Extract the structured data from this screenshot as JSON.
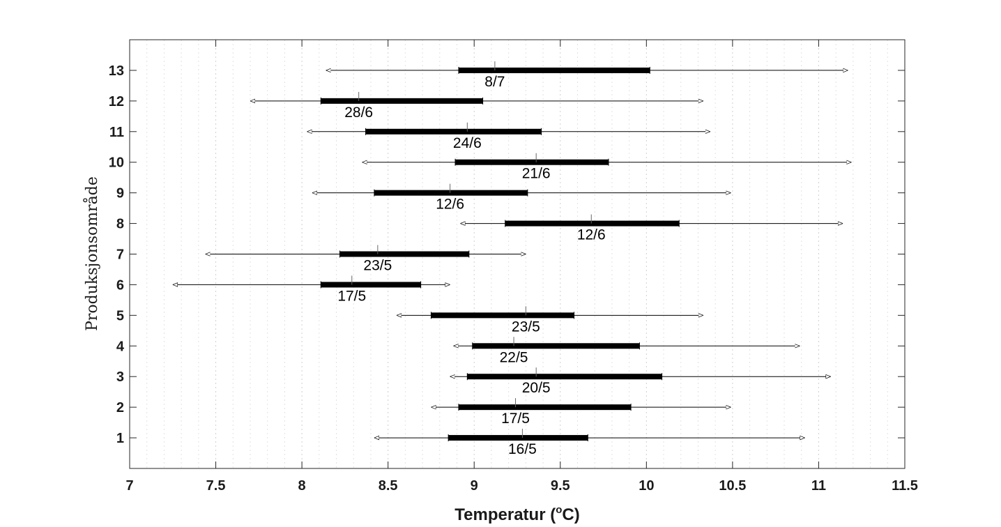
{
  "chart_data": {
    "type": "range-bar",
    "xlabel": "Temperatur (",
    "xlabel_sup": "o",
    "xlabel_end": "C)",
    "ylabel": "Produksjonsområde",
    "xlim": [
      7,
      11.5
    ],
    "ylim": [
      0,
      14
    ],
    "x_ticks": [
      "7",
      "7.5",
      "8",
      "8.5",
      "9",
      "9.5",
      "10",
      "10.5",
      "11",
      "11.5"
    ],
    "grid": "vertical dotted minor",
    "rows": [
      {
        "area": "1",
        "min": 8.42,
        "max": 10.92,
        "q_low": 8.85,
        "q_high": 9.66,
        "marker": 9.28,
        "date": "16/5"
      },
      {
        "area": "2",
        "min": 8.75,
        "max": 10.49,
        "q_low": 8.91,
        "q_high": 9.91,
        "marker": 9.24,
        "date": "17/5"
      },
      {
        "area": "3",
        "min": 8.86,
        "max": 11.07,
        "q_low": 8.96,
        "q_high": 10.09,
        "marker": 9.36,
        "date": "20/5"
      },
      {
        "area": "4",
        "min": 8.88,
        "max": 10.89,
        "q_low": 8.99,
        "q_high": 9.96,
        "marker": 9.23,
        "date": "22/5"
      },
      {
        "area": "5",
        "min": 8.55,
        "max": 10.33,
        "q_low": 8.75,
        "q_high": 9.58,
        "marker": 9.3,
        "date": "23/5"
      },
      {
        "area": "6",
        "min": 7.25,
        "max": 8.86,
        "q_low": 8.11,
        "q_high": 8.69,
        "marker": 8.29,
        "date": "17/5"
      },
      {
        "area": "7",
        "min": 7.44,
        "max": 9.3,
        "q_low": 8.22,
        "q_high": 8.97,
        "marker": 8.44,
        "date": "23/5"
      },
      {
        "area": "8",
        "min": 8.92,
        "max": 11.14,
        "q_low": 9.18,
        "q_high": 10.19,
        "marker": 9.68,
        "date": "12/6"
      },
      {
        "area": "9",
        "min": 8.06,
        "max": 10.49,
        "q_low": 8.42,
        "q_high": 9.31,
        "marker": 8.86,
        "date": "12/6"
      },
      {
        "area": "10",
        "min": 8.35,
        "max": 11.19,
        "q_low": 8.89,
        "q_high": 9.78,
        "marker": 9.36,
        "date": "21/6"
      },
      {
        "area": "11",
        "min": 8.03,
        "max": 10.37,
        "q_low": 8.37,
        "q_high": 9.39,
        "marker": 8.96,
        "date": "24/6"
      },
      {
        "area": "12",
        "min": 7.7,
        "max": 10.33,
        "q_low": 8.11,
        "q_high": 9.05,
        "marker": 8.33,
        "date": "28/6"
      },
      {
        "area": "13",
        "min": 8.14,
        "max": 11.17,
        "q_low": 8.91,
        "q_high": 10.02,
        "marker": 9.12,
        "date": "8/7"
      }
    ]
  }
}
